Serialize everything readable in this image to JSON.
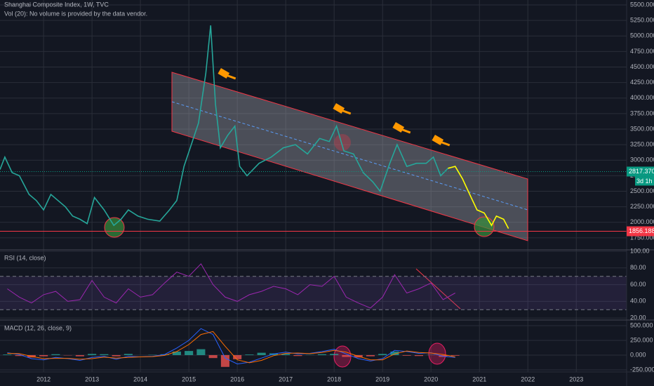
{
  "chart_data": [
    {
      "type": "line",
      "title": "Shanghai Composite Index, 1W, TVC",
      "subtitle": "Vol (20): No volume is provided by the data vendor.",
      "xlim": [
        2011.1,
        2024.04
      ],
      "xticks": [
        2012,
        2013,
        2014,
        2015,
        2016,
        2017,
        2018,
        2019,
        2020,
        2021,
        2022,
        2023
      ],
      "ylim": [
        1557,
        5579
      ],
      "yticks": [
        {
          "value": 1750,
          "label": "1750.000"
        },
        {
          "value": 2000,
          "label": "2000.000"
        },
        {
          "value": 2250,
          "label": "2250.000"
        },
        {
          "value": 2500,
          "label": "2500.000"
        },
        {
          "value": 2750,
          "label": "2750.000"
        },
        {
          "value": 3000,
          "label": "3000.000"
        },
        {
          "value": 3250,
          "label": "3250.000"
        },
        {
          "value": 3500,
          "label": "3500.000"
        },
        {
          "value": 3750,
          "label": "3750.000"
        },
        {
          "value": 4000,
          "label": "4000.000"
        },
        {
          "value": 4250,
          "label": "4250.000"
        },
        {
          "value": 4500,
          "label": "4500.000"
        },
        {
          "value": 4750,
          "label": "4750.000"
        },
        {
          "value": 5000,
          "label": "5000.000"
        },
        {
          "value": 5250,
          "label": "5250.000"
        },
        {
          "value": 5500,
          "label": "5500.000"
        }
      ],
      "grid": true,
      "x": [
        2011.1,
        2011.2,
        2011.35,
        2011.5,
        2011.7,
        2011.85,
        2012.0,
        2012.15,
        2012.3,
        2012.45,
        2012.6,
        2012.75,
        2012.9,
        2013.05,
        2013.25,
        2013.45,
        2013.6,
        2013.75,
        2013.95,
        2014.15,
        2014.4,
        2014.6,
        2014.75,
        2014.9,
        2015.05,
        2015.2,
        2015.35,
        2015.45,
        2015.55,
        2015.65,
        2015.8,
        2015.95,
        2016.05,
        2016.2,
        2016.45,
        2016.7,
        2016.95,
        2017.2,
        2017.45,
        2017.7,
        2017.9,
        2018.05,
        2018.2,
        2018.4,
        2018.6,
        2018.8,
        2018.95,
        2019.15,
        2019.3,
        2019.5,
        2019.7,
        2019.9,
        2020.05,
        2020.2,
        2020.35,
        2020.5,
        2020.65,
        2020.8,
        2020.95,
        2021.1,
        2021.25,
        2021.35,
        2021.5,
        2021.6
      ],
      "series": [
        {
          "color": "#26a69a",
          "values": [
            2850,
            3050,
            2800,
            2750,
            2450,
            2350,
            2200,
            2450,
            2350,
            2250,
            2100,
            2050,
            1980,
            2400,
            2200,
            1950,
            2050,
            2200,
            2100,
            2050,
            2020,
            2200,
            2350,
            2900,
            3250,
            3600,
            4400,
            5170,
            3900,
            3200,
            3400,
            3550,
            2900,
            2750,
            2950,
            3050,
            3200,
            3250,
            3100,
            3350,
            3300,
            3550,
            3150,
            3100,
            2800,
            2650,
            2500,
            2950,
            3250,
            2900,
            2950,
            2950,
            3050,
            2750,
            2870,
            null,
            null,
            null,
            null,
            null,
            null,
            null,
            null,
            null
          ]
        },
        {
          "color": "#ffff00",
          "values": [
            null,
            null,
            null,
            null,
            null,
            null,
            null,
            null,
            null,
            null,
            null,
            null,
            null,
            null,
            null,
            null,
            null,
            null,
            null,
            null,
            null,
            null,
            null,
            null,
            null,
            null,
            null,
            null,
            null,
            null,
            null,
            null,
            null,
            null,
            null,
            null,
            null,
            null,
            null,
            null,
            null,
            null,
            null,
            null,
            null,
            null,
            null,
            null,
            null,
            null,
            null,
            null,
            null,
            null,
            2870,
            2900,
            2700,
            2450,
            2200,
            2150,
            1950,
            2100,
            2050,
            1900
          ]
        }
      ],
      "price_labels": [
        {
          "value": 2817.37,
          "label": "2817.370",
          "color": "#089981",
          "line": "dotted"
        },
        {
          "value": 1856.188,
          "label": "1856.188",
          "color": "#f23645",
          "line": "solid"
        }
      ],
      "countdown": "3d 1h"
    },
    {
      "type": "line",
      "title": "RSI (14, close)",
      "ylim": [
        17.6,
        101.7
      ],
      "yticks": [
        {
          "value": 100,
          "label": "100.00"
        },
        {
          "value": 80,
          "label": "80.00"
        },
        {
          "value": 60,
          "label": "60.00"
        },
        {
          "value": 40,
          "label": "40.00"
        },
        {
          "value": 20,
          "label": "20.00"
        }
      ],
      "band": [
        30,
        70
      ],
      "band_color": "#7e57c2",
      "x": [
        2011.25,
        2011.5,
        2011.75,
        2012.0,
        2012.25,
        2012.5,
        2012.75,
        2013.0,
        2013.25,
        2013.5,
        2013.75,
        2014.0,
        2014.25,
        2014.5,
        2014.75,
        2015.0,
        2015.25,
        2015.5,
        2015.75,
        2016.0,
        2016.25,
        2016.5,
        2016.75,
        2017.0,
        2017.25,
        2017.5,
        2017.75,
        2018.0,
        2018.25,
        2018.5,
        2018.75,
        2019.0,
        2019.25,
        2019.5,
        2019.75,
        2020.0,
        2020.25,
        2020.5
      ],
      "series": [
        {
          "color": "#9c27b0",
          "values": [
            55,
            45,
            38,
            48,
            52,
            40,
            42,
            65,
            45,
            38,
            55,
            45,
            48,
            62,
            75,
            70,
            85,
            60,
            45,
            40,
            48,
            52,
            58,
            55,
            48,
            60,
            58,
            70,
            45,
            38,
            32,
            45,
            72,
            50,
            55,
            62,
            42,
            50
          ]
        }
      ]
    },
    {
      "type": "line",
      "title": "MACD (12, 26, close, 9)",
      "ylim": [
        -286,
        595
      ],
      "yticks": [
        {
          "value": 500,
          "label": "500.000"
        },
        {
          "value": 250,
          "label": "250.000"
        },
        {
          "value": 0,
          "label": "0.000"
        },
        {
          "value": -250,
          "label": "-250.000"
        }
      ],
      "x": [
        2011.25,
        2011.5,
        2011.75,
        2012.0,
        2012.25,
        2012.5,
        2012.75,
        2013.0,
        2013.25,
        2013.5,
        2013.75,
        2014.0,
        2014.25,
        2014.5,
        2014.75,
        2015.0,
        2015.25,
        2015.5,
        2015.75,
        2016.0,
        2016.25,
        2016.5,
        2016.75,
        2017.0,
        2017.25,
        2017.5,
        2017.75,
        2018.0,
        2018.25,
        2018.5,
        2018.75,
        2019.0,
        2019.25,
        2019.5,
        2019.75,
        2020.0,
        2020.25,
        2020.5
      ],
      "series": [
        {
          "kind": "bar",
          "color": "#26a69a",
          "color_negative": "#ef5350",
          "values": [
            10,
            -15,
            -40,
            -20,
            15,
            -5,
            -20,
            20,
            15,
            -20,
            20,
            0,
            5,
            15,
            60,
            70,
            100,
            -50,
            -200,
            -70,
            10,
            40,
            30,
            20,
            -15,
            5,
            15,
            20,
            -30,
            -40,
            -20,
            20,
            60,
            -10,
            -15,
            5,
            -30,
            -10
          ]
        },
        {
          "color": "#2962ff",
          "values": [
            40,
            10,
            -60,
            -80,
            -40,
            -60,
            -90,
            -40,
            -20,
            -70,
            -20,
            -30,
            -20,
            10,
            120,
            250,
            450,
            350,
            -50,
            -150,
            -120,
            -50,
            20,
            50,
            20,
            30,
            60,
            100,
            20,
            -60,
            -100,
            -60,
            80,
            60,
            30,
            40,
            -20,
            -40
          ]
        },
        {
          "color": "#ff6d00",
          "values": [
            30,
            25,
            -20,
            -60,
            -55,
            -55,
            -70,
            -60,
            -35,
            -50,
            -40,
            -30,
            -25,
            -5,
            60,
            180,
            350,
            400,
            150,
            -80,
            -130,
            -90,
            -10,
            30,
            35,
            25,
            45,
            80,
            50,
            -20,
            -80,
            -80,
            20,
            70,
            45,
            35,
            10,
            -30
          ]
        }
      ]
    }
  ]
}
